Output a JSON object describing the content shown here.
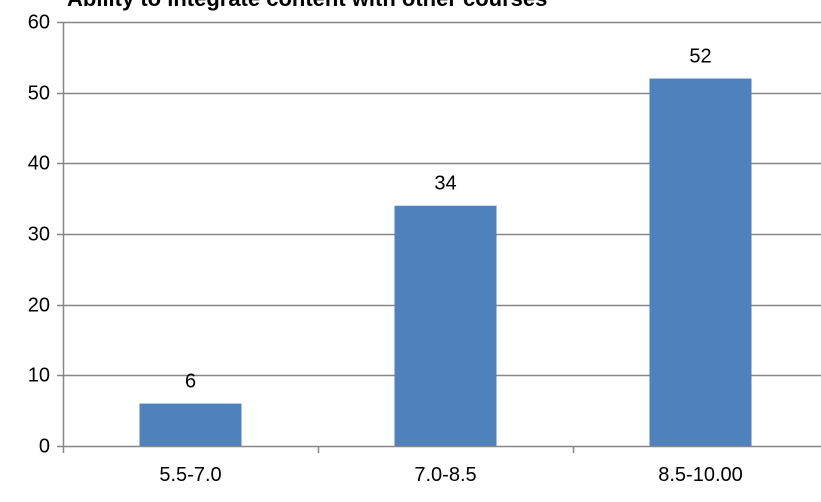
{
  "chart_data": {
    "type": "bar",
    "title": "Ability to integrate content with other courses",
    "categories": [
      "5.5-7.0",
      "7.0-8.5",
      "8.5-10.00"
    ],
    "values": [
      6,
      34,
      52
    ],
    "data_labels": [
      "6",
      "34",
      "52"
    ],
    "xlabel": "",
    "ylabel": "",
    "ylim": [
      0,
      60
    ],
    "yticks": [
      0,
      10,
      20,
      30,
      40,
      50,
      60
    ],
    "ytick_labels": [
      "0",
      "10",
      "20",
      "30",
      "40",
      "50",
      "60"
    ],
    "grid": true,
    "legend": "none",
    "colors": {
      "bar": "#4f81bd",
      "grid": "#868686",
      "axis": "#868686"
    }
  }
}
